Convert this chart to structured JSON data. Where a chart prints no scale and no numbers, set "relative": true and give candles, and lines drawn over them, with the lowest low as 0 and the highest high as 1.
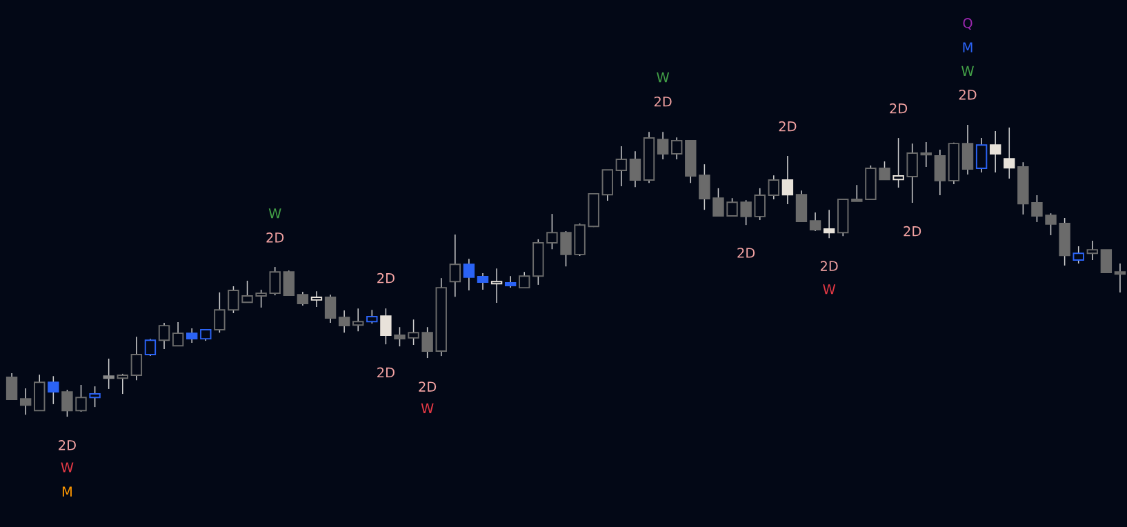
{
  "chart_data": {
    "type": "candlestick",
    "relative": true,
    "categories": [
      null,
      null,
      null,
      null,
      null,
      null,
      null,
      null,
      null,
      null,
      null,
      null,
      null,
      null,
      null,
      null,
      null,
      null,
      null,
      null,
      null,
      null,
      null,
      null,
      null,
      null,
      null,
      null,
      null,
      null,
      null,
      null,
      null,
      null,
      null,
      null,
      null,
      null,
      null,
      null,
      null,
      null,
      null,
      null,
      null,
      null,
      null,
      null,
      null,
      null,
      null,
      null,
      null,
      null,
      null,
      null,
      null,
      null,
      null,
      null,
      null,
      null,
      null,
      null,
      null,
      null,
      null,
      null,
      null,
      null,
      null,
      null,
      null,
      null,
      null,
      null,
      null,
      null,
      null,
      null,
      null
    ],
    "ohlc": [
      [
        0.135,
        0.149,
        0.059,
        0.059
      ],
      [
        0.061,
        0.097,
        0.007,
        0.04
      ],
      [
        0.021,
        0.144,
        0.021,
        0.118
      ],
      [
        0.118,
        0.139,
        0.043,
        0.085
      ],
      [
        0.085,
        0.092,
        0,
        0.021
      ],
      [
        0.021,
        0.109,
        0.017,
        0.066
      ],
      [
        0.066,
        0.104,
        0.033,
        0.078
      ],
      [
        0.139,
        0.199,
        0.095,
        0.132
      ],
      [
        0.132,
        0.147,
        0.078,
        0.142
      ],
      [
        0.142,
        0.274,
        0.125,
        0.213
      ],
      [
        0.213,
        0.267,
        0.208,
        0.262
      ],
      [
        0.262,
        0.322,
        0.232,
        0.312
      ],
      [
        0.243,
        0.324,
        0.243,
        0.286
      ],
      [
        0.286,
        0.303,
        0.253,
        0.267
      ],
      [
        0.267,
        0.298,
        0.26,
        0.298
      ],
      [
        0.298,
        0.426,
        0.288,
        0.366
      ],
      [
        0.366,
        0.447,
        0.355,
        0.433
      ],
      [
        0.392,
        0.466,
        0.392,
        0.414
      ],
      [
        0.414,
        0.435,
        0.374,
        0.423
      ],
      [
        0.423,
        0.513,
        0.416,
        0.496
      ],
      [
        0.496,
        0.501,
        0.414,
        0.416
      ],
      [
        0.418,
        0.428,
        0.381,
        0.388
      ],
      [
        0.4,
        0.43,
        0.376,
        0.409
      ],
      [
        0.409,
        0.418,
        0.322,
        0.338
      ],
      [
        0.34,
        0.364,
        0.288,
        0.312
      ],
      [
        0.314,
        0.371,
        0.293,
        0.326
      ],
      [
        0.326,
        0.366,
        0.319,
        0.343
      ],
      [
        0.345,
        0.371,
        0.248,
        0.279
      ],
      [
        0.279,
        0.307,
        0.241,
        0.267
      ],
      [
        0.27,
        0.333,
        0.246,
        0.288
      ],
      [
        0.288,
        0.307,
        0.201,
        0.225
      ],
      [
        0.225,
        0.475,
        0.208,
        0.442
      ],
      [
        0.463,
        0.624,
        0.411,
        0.522
      ],
      [
        0.522,
        0.541,
        0.433,
        0.478
      ],
      [
        0.48,
        0.492,
        0.435,
        0.461
      ],
      [
        0.456,
        0.508,
        0.39,
        0.463
      ],
      [
        0.459,
        0.482,
        0.442,
        0.449
      ],
      [
        0.442,
        0.496,
        0.442,
        0.482
      ],
      [
        0.482,
        0.608,
        0.452,
        0.596
      ],
      [
        0.596,
        0.695,
        0.574,
        0.631
      ],
      [
        0.631,
        0.636,
        0.515,
        0.556
      ],
      [
        0.556,
        0.662,
        0.551,
        0.657
      ],
      [
        0.652,
        0.766,
        0.65,
        0.764
      ],
      [
        0.761,
        0.846,
        0.74,
        0.846
      ],
      [
        0.844,
        0.927,
        0.79,
        0.882
      ],
      [
        0.882,
        0.91,
        0.787,
        0.811
      ],
      [
        0.811,
        0.976,
        0.801,
        0.955
      ],
      [
        0.95,
        0.976,
        0.882,
        0.901
      ],
      [
        0.901,
        0.957,
        0.882,
        0.946
      ],
      [
        0.946,
        0.948,
        0.801,
        0.825
      ],
      [
        0.827,
        0.865,
        0.709,
        0.747
      ],
      [
        0.749,
        0.783,
        0.686,
        0.688
      ],
      [
        0.688,
        0.749,
        0.686,
        0.735
      ],
      [
        0.735,
        0.742,
        0.657,
        0.686
      ],
      [
        0.686,
        0.783,
        0.674,
        0.759
      ],
      [
        0.759,
        0.827,
        0.745,
        0.811
      ],
      [
        0.811,
        0.894,
        0.728,
        0.761
      ],
      [
        0.761,
        0.775,
        0.669,
        0.669
      ],
      [
        0.671,
        0.7,
        0.636,
        0.641
      ],
      [
        0.643,
        0.709,
        0.612,
        0.631
      ],
      [
        0.631,
        0.747,
        0.619,
        0.745
      ],
      [
        0.745,
        0.794,
        0.738,
        0.738
      ],
      [
        0.745,
        0.861,
        0.745,
        0.851
      ],
      [
        0.851,
        0.875,
        0.811,
        0.813
      ],
      [
        0.813,
        0.955,
        0.785,
        0.825
      ],
      [
        0.823,
        0.936,
        0.733,
        0.903
      ],
      [
        0.903,
        0.941,
        0.856,
        0.898
      ],
      [
        0.894,
        0.915,
        0.759,
        0.809
      ],
      [
        0.809,
        0.939,
        0.797,
        0.936
      ],
      [
        0.936,
        1,
        0.83,
        0.849
      ],
      [
        0.851,
        0.955,
        0.837,
        0.931
      ],
      [
        0.931,
        0.979,
        0.837,
        0.901
      ],
      [
        0.884,
        0.991,
        0.816,
        0.853
      ],
      [
        0.856,
        0.872,
        0.693,
        0.73
      ],
      [
        0.733,
        0.759,
        0.667,
        0.688
      ],
      [
        0.69,
        0.697,
        0.622,
        0.66
      ],
      [
        0.662,
        0.681,
        0.518,
        0.553
      ],
      [
        0.537,
        0.584,
        0.525,
        0.56
      ],
      [
        0.56,
        0.603,
        0.537,
        0.572
      ],
      [
        0.572,
        0.572,
        0.492,
        0.494
      ],
      [
        0.496,
        0.525,
        0.426,
        0.489
      ]
    ],
    "colors": [
      "#6b6b6b",
      "#6b6b6b",
      "#6b6b6b",
      "#2b63f5",
      "#6b6b6b",
      "#6b6b6b",
      "#2b63f5",
      "#8a8a8a",
      "#6b6b6b",
      "#6b6b6b",
      "#2b63f5",
      "#6b6b6b",
      "#6b6b6b",
      "#2b63f5",
      "#2b63f5",
      "#6b6b6b",
      "#6b6b6b",
      "#6b6b6b",
      "#6b6b6b",
      "#6b6b6b",
      "#6b6b6b",
      "#6b6b6b",
      "#e8e2da",
      "#6b6b6b",
      "#6b6b6b",
      "#6b6b6b",
      "#2b63f5",
      "#e8e2da",
      "#6b6b6b",
      "#6b6b6b",
      "#6b6b6b",
      "#6b6b6b",
      "#6b6b6b",
      "#2b63f5",
      "#2b63f5",
      "#e8e2da",
      "#2b63f5",
      "#6b6b6b",
      "#6b6b6b",
      "#6b6b6b",
      "#6b6b6b",
      "#6b6b6b",
      "#6b6b6b",
      "#6b6b6b",
      "#6b6b6b",
      "#6b6b6b",
      "#6b6b6b",
      "#6b6b6b",
      "#6b6b6b",
      "#6b6b6b",
      "#6b6b6b",
      "#6b6b6b",
      "#6b6b6b",
      "#6b6b6b",
      "#6b6b6b",
      "#6b6b6b",
      "#e8e2da",
      "#6b6b6b",
      "#6b6b6b",
      "#e8e2da",
      "#6b6b6b",
      "#6b6b6b",
      "#6b6b6b",
      "#6b6b6b",
      "#e8e2da",
      "#6b6b6b",
      "#6b6b6b",
      "#6b6b6b",
      "#6b6b6b",
      "#6b6b6b",
      "#2b63f5",
      "#e8e2da",
      "#e8e2da",
      "#6b6b6b",
      "#6b6b6b",
      "#6b6b6b",
      "#6b6b6b",
      "#2b63f5",
      "#6b6b6b",
      "#6b6b6b",
      "#6b6b6b"
    ],
    "annotations": [
      "2D",
      "W",
      "M",
      "W",
      "2D",
      "2D",
      "2D",
      "2D",
      "W",
      "W",
      "2D",
      "2D",
      "2D",
      "2D",
      "W",
      "2D",
      "2D",
      "Q",
      "M",
      "W",
      "2D"
    ]
  }
}
